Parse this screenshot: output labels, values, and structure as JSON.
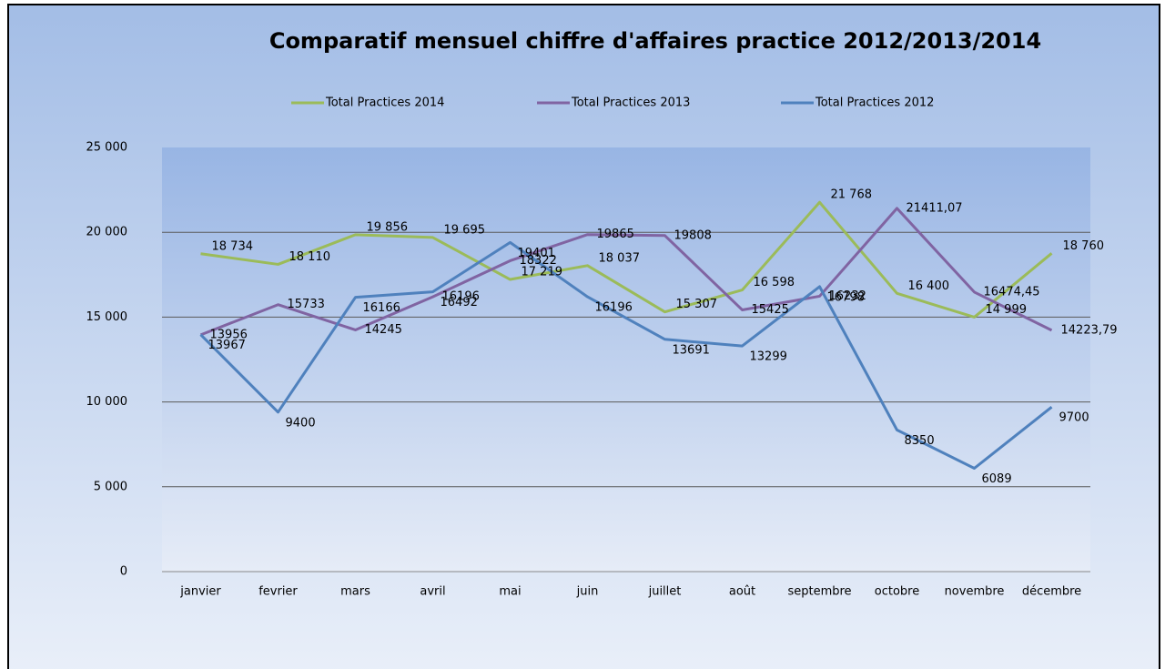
{
  "chart_data": {
    "type": "line",
    "title": "Comparatif mensuel chiffre d'affaires practice 2012/2013/2014",
    "categories": [
      "janvier",
      "fevrier",
      "mars",
      "avril",
      "mai",
      "juin",
      "juillet",
      "août",
      "septembre",
      "octobre",
      "novembre",
      "décembre"
    ],
    "series": [
      {
        "name": "Total Practices 2014",
        "color": "#9bbb59",
        "values": [
          18734,
          18110,
          19856,
          19695,
          17219,
          18037,
          15307,
          16598,
          21768,
          16400,
          14999,
          18760
        ],
        "value_labels": [
          "18 734",
          "18 110",
          "19 856",
          "19 695",
          "17 219",
          "18 037",
          "15 307",
          "16 598",
          "21 768",
          "16 400",
          "14 999",
          "18 760"
        ],
        "label_color": "#ff0000"
      },
      {
        "name": "Total Practices 2013",
        "color": "#8064a2",
        "values": [
          13956,
          15733,
          14245,
          16196,
          18322,
          19865,
          19808,
          15425,
          16232,
          21411.07,
          16474.45,
          14223.79
        ],
        "value_labels": [
          "13956",
          "15733",
          "14245",
          "16196",
          "18322",
          "19865",
          "19808",
          "15425",
          "16232",
          "21411,07",
          "16474,45",
          "14223,79"
        ],
        "label_color": "#000000"
      },
      {
        "name": "Total Practices 2012",
        "color": "#4f81bd",
        "values": [
          13967,
          9400,
          16166,
          16492,
          19401,
          16196,
          13691,
          13299,
          16798,
          8350,
          6089,
          9700
        ],
        "label_color": "#000000"
      }
    ],
    "ylim": [
      0,
      25000
    ],
    "yticks": [
      0,
      {
        "value": 5000,
        "label": "5 000"
      },
      {
        "value": 10000,
        "label": "10 000"
      },
      {
        "value": 15000,
        "label": "15 000"
      },
      {
        "value": 20000,
        "label": "20 000"
      },
      {
        "value": 25000,
        "label": "25 000"
      }
    ],
    "grid": true,
    "legend": "top"
  }
}
